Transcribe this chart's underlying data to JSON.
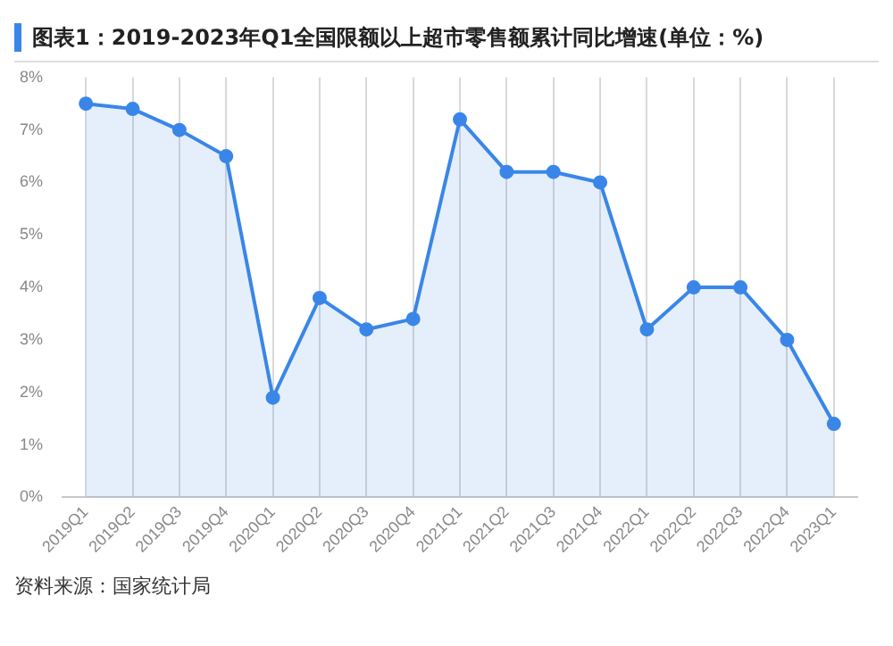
{
  "chart_data": {
    "type": "area",
    "title": "图表1：2019-2023年Q1全国限额以上超市零售额累计同比增速(单位：%)",
    "categories": [
      "2019Q1",
      "2019Q2",
      "2019Q3",
      "2019Q4",
      "2020Q1",
      "2020Q2",
      "2020Q3",
      "2020Q4",
      "2021Q1",
      "2021Q2",
      "2021Q3",
      "2021Q4",
      "2022Q1",
      "2022Q2",
      "2022Q3",
      "2022Q4",
      "2023Q1"
    ],
    "series": [
      {
        "color": "#3a86e8",
        "values": [
          7.5,
          7.4,
          7.0,
          6.5,
          1.9,
          3.8,
          3.2,
          3.4,
          7.2,
          6.2,
          6.2,
          6.0,
          3.2,
          4.0,
          4.0,
          3.0,
          1.4
        ]
      }
    ],
    "ylim": [
      0,
      8
    ],
    "yticks": [
      {
        "value": 0,
        "label": "0%"
      },
      {
        "value": 1,
        "label": "1%"
      },
      {
        "value": 2,
        "label": "2%"
      },
      {
        "value": 3,
        "label": "3%"
      },
      {
        "value": 4,
        "label": "4%"
      },
      {
        "value": 5,
        "label": "5%"
      },
      {
        "value": 6,
        "label": "6%"
      },
      {
        "value": 7,
        "label": "7%"
      },
      {
        "value": 8,
        "label": "8%"
      }
    ],
    "grid": "x",
    "marker": "circle",
    "line_style": "solid",
    "annotations": [
      "资料来源：国家统计局"
    ]
  }
}
